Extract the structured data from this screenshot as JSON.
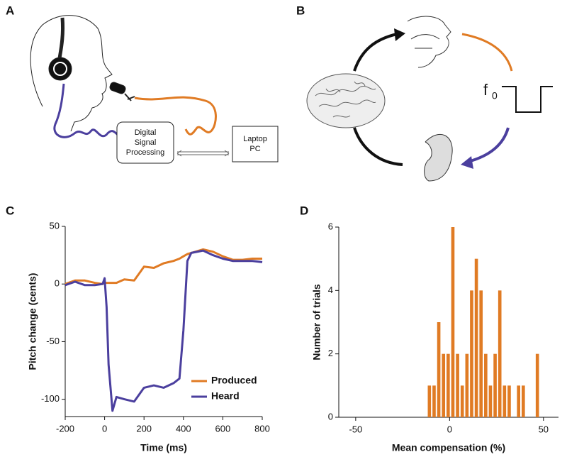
{
  "panel_labels": [
    "A",
    "B",
    "C",
    "D"
  ],
  "dsp_box": [
    "Digital",
    "Signal",
    "Processing"
  ],
  "laptop_box": [
    "Laptop",
    "PC"
  ],
  "f0_label": {
    "base": "f",
    "sub": "0"
  },
  "chart_data": [
    {
      "type": "line",
      "xlabel": "Time (ms)",
      "ylabel": "Pitch change (cents)",
      "x": [
        -200,
        -150,
        -100,
        -50,
        -10,
        0,
        10,
        20,
        40,
        60,
        100,
        150,
        200,
        250,
        300,
        350,
        380,
        400,
        420,
        440,
        500,
        550,
        600,
        650,
        700,
        750,
        800
      ],
      "series": [
        {
          "name": "Produced",
          "color": "#e07b24",
          "values": [
            0,
            3,
            3,
            1,
            0,
            1,
            1,
            1,
            1,
            1,
            4,
            3,
            15,
            14,
            18,
            20,
            22,
            24,
            26,
            27,
            30,
            28,
            24,
            21,
            21,
            22,
            22
          ]
        },
        {
          "name": "Heard",
          "color": "#4b3f9e",
          "values": [
            -1,
            2,
            -1,
            -1,
            0,
            5,
            -20,
            -70,
            -110,
            -98,
            -100,
            -102,
            -90,
            -88,
            -90,
            -86,
            -82,
            -40,
            20,
            27,
            29,
            25,
            22,
            20,
            20,
            20,
            19
          ]
        }
      ],
      "xlim": [
        -200,
        800
      ],
      "xticks": [
        -200,
        0,
        200,
        400,
        600,
        800
      ],
      "ylim": [
        -115,
        50
      ],
      "yticks": [
        -100,
        -50,
        0,
        50
      ],
      "legend": "lower right"
    },
    {
      "type": "histogram",
      "xlabel": "Mean compensation (%)",
      "ylabel": "Number of trials",
      "color": "#e07b24",
      "bins": [
        -12,
        -9.5,
        -7,
        -4.5,
        -2,
        0.5,
        3,
        5.5,
        8,
        10.5,
        13,
        15.5,
        18,
        20.5,
        23,
        25.5,
        28,
        30.5,
        33,
        35.5,
        38,
        40.5,
        43,
        45.5,
        48
      ],
      "values": [
        1,
        1,
        3,
        2,
        2,
        6,
        2,
        1,
        2,
        4,
        5,
        4,
        2,
        1,
        2,
        4,
        1,
        1,
        0,
        1,
        1,
        0,
        0,
        2
      ],
      "xlim": [
        -59,
        58
      ],
      "xticks": [
        -50,
        0,
        50
      ],
      "ylim": [
        0,
        6
      ],
      "yticks": [
        0,
        2,
        4,
        6
      ]
    }
  ]
}
